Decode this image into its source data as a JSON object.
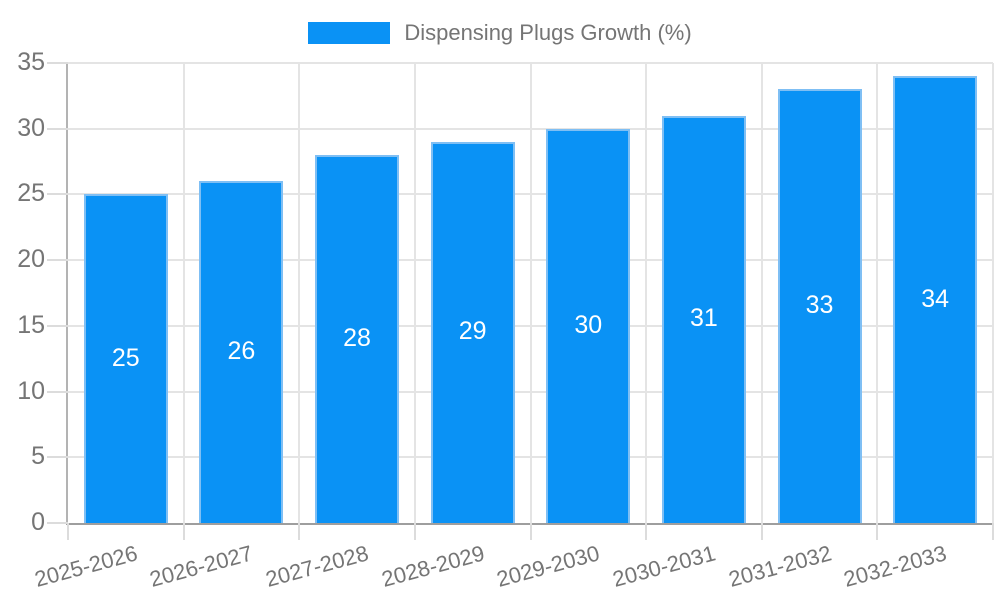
{
  "legend": {
    "label": "Dispensing Plugs Growth (%)"
  },
  "chart_data": {
    "type": "bar",
    "title": "",
    "xlabel": "",
    "ylabel": "",
    "categories": [
      "2025-2026",
      "2026-2027",
      "2027-2028",
      "2028-2029",
      "2029-2030",
      "2030-2031",
      "2031-2032",
      "2032-2033"
    ],
    "series": [
      {
        "name": "Dispensing Plugs Growth (%)",
        "values": [
          25,
          26,
          28,
          29,
          30,
          31,
          33,
          34
        ]
      }
    ],
    "value_labels_shown": true,
    "ylim": [
      0,
      35
    ],
    "yticks": [
      0,
      5,
      10,
      15,
      20,
      25,
      30,
      35
    ],
    "grid": true,
    "legend_position": "top",
    "colors": {
      "bar_fill": "#0a92f5",
      "bar_border": "#7fbff4",
      "value_label": "#ffffff",
      "axis_text": "#757575",
      "gridline": "#e4e4e4",
      "axis_line": "#9e9e9e"
    }
  }
}
